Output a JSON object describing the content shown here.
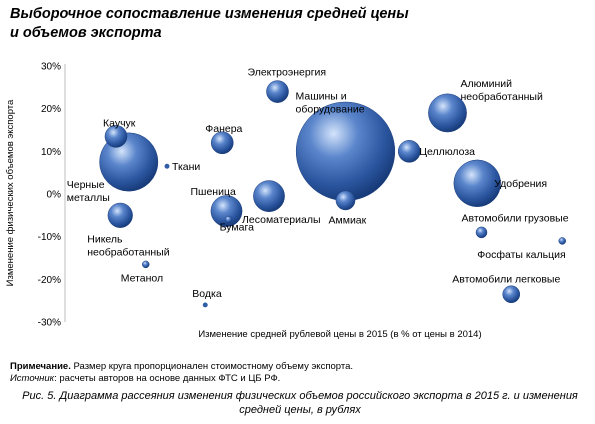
{
  "title_line1": "Выборочное сопоставление изменения средней цены",
  "title_line2": "и объемов экспорта",
  "note_label": "Примечание.",
  "note_text": " Размер круга пропорционален стоимостному объему экспорта.",
  "source_label": "Источник",
  "source_text": ": расчеты авторов на основе данных ФТС и ЦБ РФ.",
  "caption_line1": "Рис. 5. Диаграмма рассеяния изменения физических объемов российского экспорта в 2015 г. и изменения",
  "caption_line2": "средней цены, в рублях",
  "chart_data": {
    "type": "scatter",
    "subtype": "bubble",
    "xlabel": "Изменение средней рублевой цены в 2015 (в % от цены в 2014)",
    "ylabel": "Изменение физических объемов экспорта",
    "ylim": [
      -30,
      30
    ],
    "yticks": [
      30,
      20,
      10,
      0,
      -10,
      -20,
      -30
    ],
    "ytick_labels": [
      "30%",
      "20%",
      "10%",
      "0%",
      "-10%",
      "-20%",
      "-30%"
    ],
    "xticks_shown": false,
    "xlim": [
      0,
      120
    ],
    "grid": false,
    "bubble_color": "#2f5da6",
    "points": [
      {
        "name": "Электроэнергия",
        "label_lines": [
          "Электроэнергия"
        ],
        "x": 50,
        "y": 24,
        "size": 2
      },
      {
        "name": "Машины и оборудование",
        "label_lines": [
          "Машины и",
          "оборудование"
        ],
        "x": 66,
        "y": 10,
        "size": 40
      },
      {
        "name": "Алюминий необработанный",
        "label_lines": [
          "Алюминий",
          "необработанный"
        ],
        "x": 90,
        "y": 19,
        "size": 6
      },
      {
        "name": "Каучук",
        "label_lines": [
          "Каучук"
        ],
        "x": 12,
        "y": 13.5,
        "size": 2
      },
      {
        "name": "Фанера",
        "label_lines": [
          "Фанера"
        ],
        "x": 37,
        "y": 12,
        "size": 2
      },
      {
        "name": "Целлюлоза",
        "label_lines": [
          "Целлюлоза"
        ],
        "x": 81,
        "y": 10,
        "size": 2
      },
      {
        "name": "Ткани",
        "label_lines": [
          "Ткани"
        ],
        "x": 24,
        "y": 6.5,
        "size": 0.1
      },
      {
        "name": "Черные металлы",
        "label_lines": [
          "Черные",
          "металлы"
        ],
        "x": 15,
        "y": 7.5,
        "size": 14
      },
      {
        "name": "Удобрения",
        "label_lines": [
          "Удобрения"
        ],
        "x": 97,
        "y": 2.5,
        "size": 9
      },
      {
        "name": "Пшеница",
        "label_lines": [
          "Пшеница"
        ],
        "x": 38,
        "y": -4,
        "size": 4
      },
      {
        "name": "Лесоматериалы",
        "label_lines": [
          "Лесоматериалы"
        ],
        "x": 48,
        "y": -0.5,
        "size": 4
      },
      {
        "name": "Аммиак",
        "label_lines": [
          "Аммиак"
        ],
        "x": 66,
        "y": -1.5,
        "size": 1.5
      },
      {
        "name": "Бумага",
        "label_lines": [
          "Бумага"
        ],
        "x": 38.5,
        "y": -6,
        "size": 0.2
      },
      {
        "name": "Никель необработанный",
        "label_lines": [
          "Никель",
          "необработанный"
        ],
        "x": 13,
        "y": -5,
        "size": 2.5
      },
      {
        "name": "Автомобили грузовые",
        "label_lines": [
          "Автомобили грузовые"
        ],
        "x": 98,
        "y": -9,
        "size": 0.5
      },
      {
        "name": "Фосфаты кальция",
        "label_lines": [
          "Фосфаты кальция"
        ],
        "x": 117,
        "y": -11,
        "size": 0.2
      },
      {
        "name": "Метанол",
        "label_lines": [
          "Метанол"
        ],
        "x": 19,
        "y": -16.5,
        "size": 0.2
      },
      {
        "name": "Автомобили легковые",
        "label_lines": [
          "Автомобили легковые"
        ],
        "x": 105,
        "y": -23.5,
        "size": 1.2
      },
      {
        "name": "Водка",
        "label_lines": [
          "Водка"
        ],
        "x": 33,
        "y": -26,
        "size": 0.1
      }
    ]
  }
}
